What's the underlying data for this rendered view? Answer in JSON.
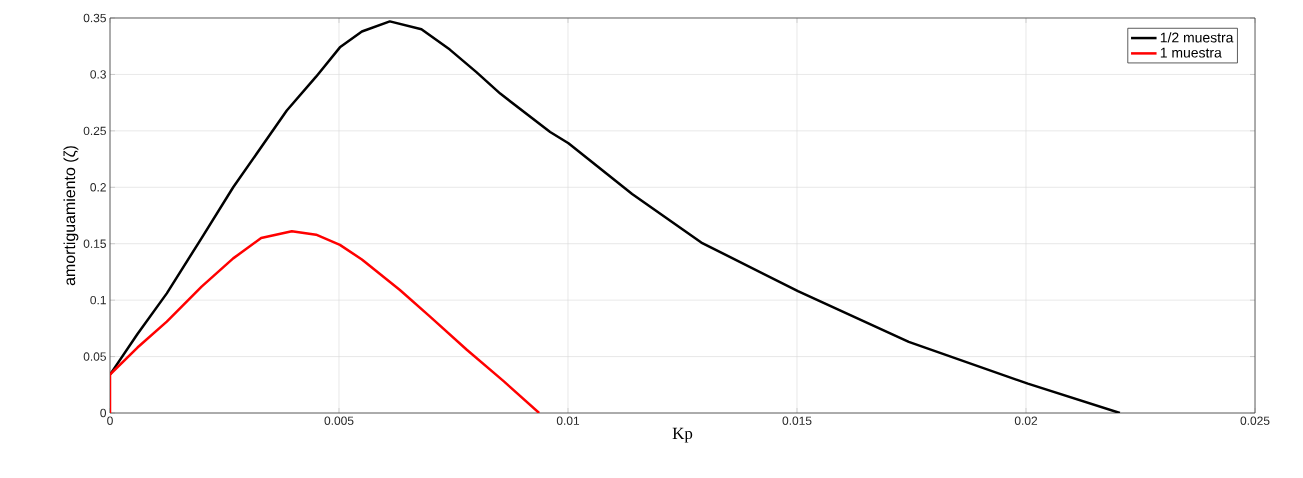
{
  "chart_data": {
    "type": "line",
    "xlabel": "Kp",
    "ylabel": "amortiguamiento (ζ)",
    "xlim": [
      0,
      0.025
    ],
    "ylim": [
      0,
      0.35
    ],
    "xticks": [
      0,
      0.005,
      0.01,
      0.015,
      0.02,
      0.025
    ],
    "yticks": [
      0,
      0.05,
      0.1,
      0.15,
      0.2,
      0.25,
      0.3,
      0.35
    ],
    "grid": true,
    "legend": "top right",
    "line_style": "solid",
    "marker": "none",
    "series": [
      {
        "name": "1/2 muestra",
        "color": "#000000",
        "x": [
          0,
          0.0006,
          0.00124,
          0.002,
          0.00269,
          0.00386,
          0.0045,
          0.00502,
          0.0055,
          0.00611,
          0.0068,
          0.00742,
          0.008,
          0.00852,
          0.00961,
          0.01001,
          0.0114,
          0.01291,
          0.01502,
          0.01744,
          0.02004,
          0.02205
        ],
        "values": [
          0.034,
          0.07,
          0.106,
          0.155,
          0.2,
          0.268,
          0.298,
          0.324,
          0.338,
          0.347,
          0.34,
          0.322,
          0.302,
          0.283,
          0.249,
          0.239,
          0.194,
          0.151,
          0.108,
          0.063,
          0.026,
          0
        ]
      },
      {
        "name": "1 muestra",
        "color": "#ff0000",
        "x": [
          0,
          0,
          0.0006,
          0.00124,
          0.002,
          0.00269,
          0.0033,
          0.00397,
          0.0045,
          0.00502,
          0.0055,
          0.00633,
          0.007,
          0.00779,
          0.0086,
          0.00937
        ],
        "values": [
          0,
          0.034,
          0.058,
          0.081,
          0.112,
          0.137,
          0.155,
          0.161,
          0.158,
          0.149,
          0.136,
          0.109,
          0.085,
          0.056,
          0.028,
          0
        ]
      }
    ]
  }
}
